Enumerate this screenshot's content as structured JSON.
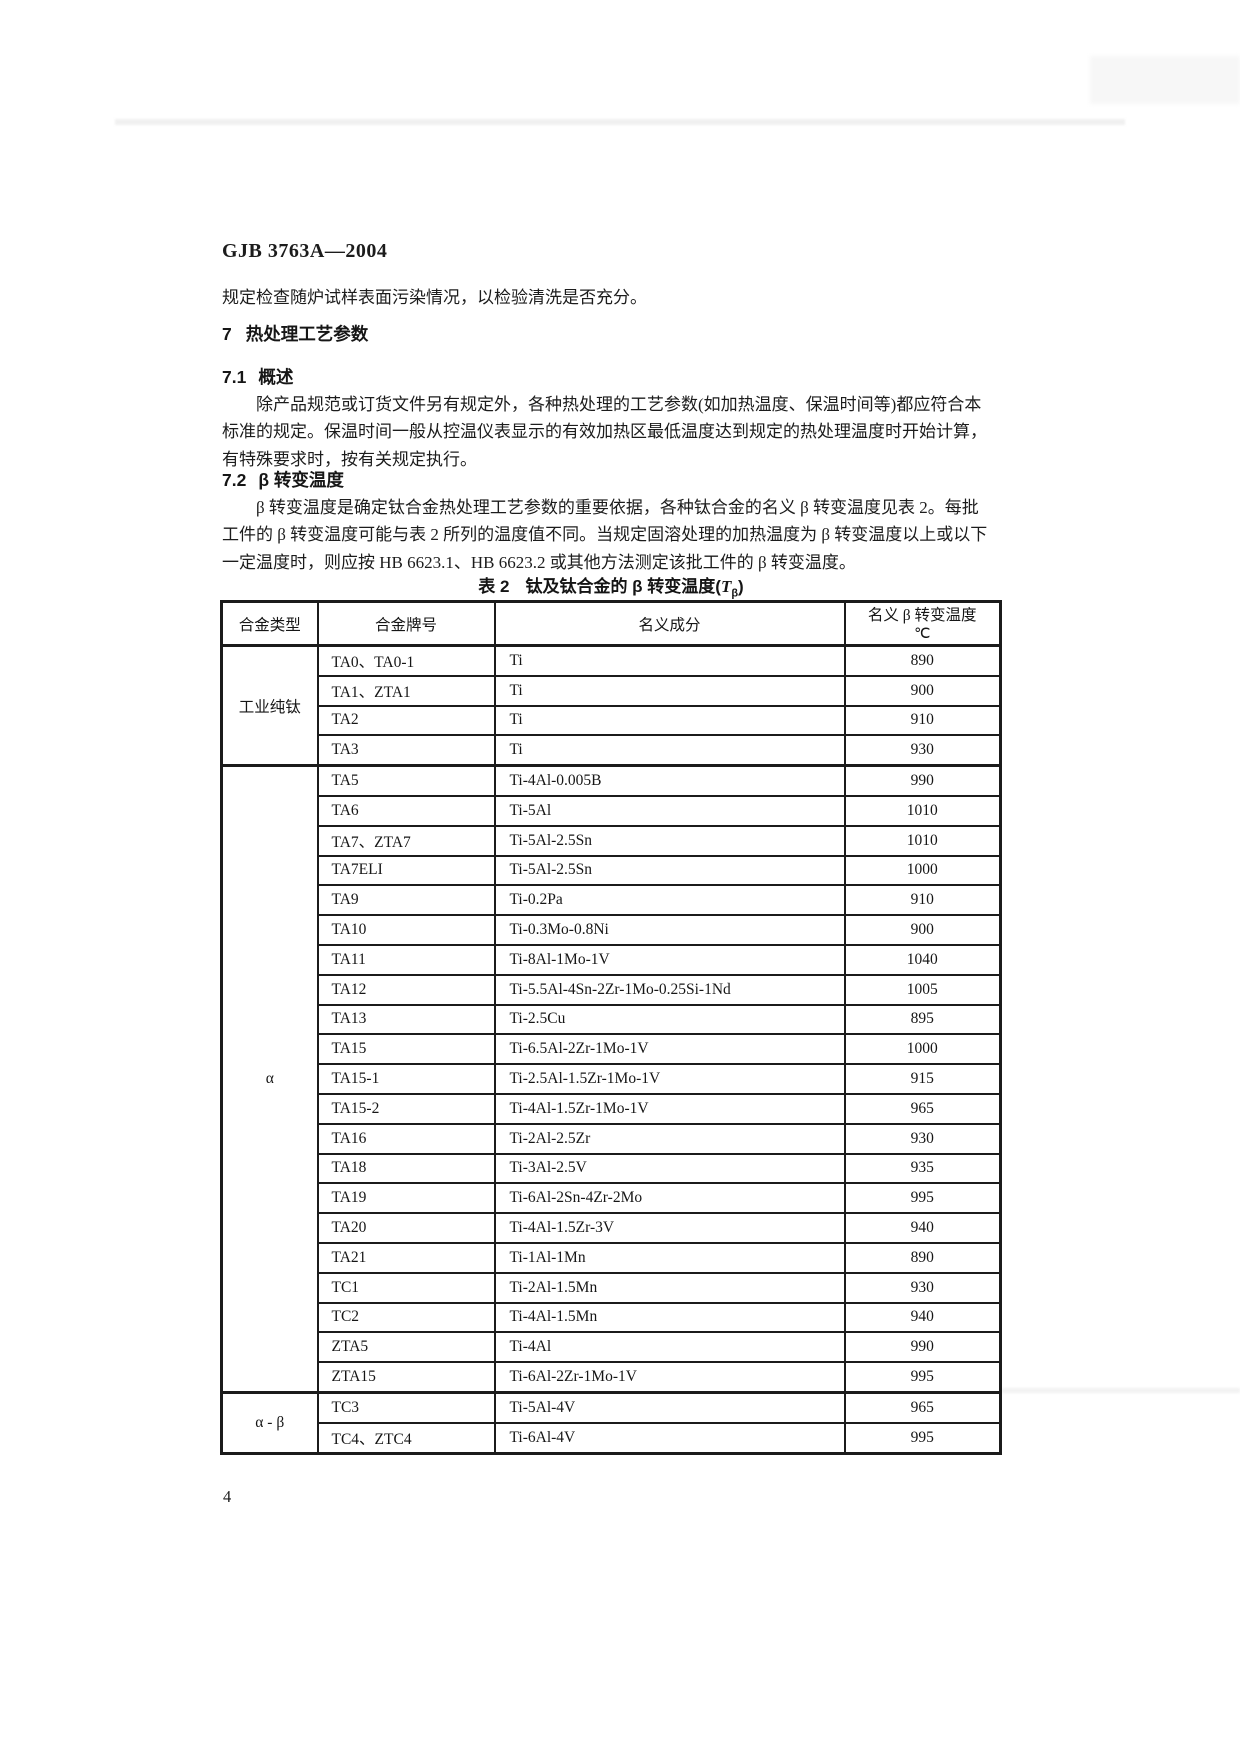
{
  "page": {
    "doc_number": "GJB 3763A—2004",
    "page_number": "4",
    "intro_line": "规定检查随炉试样表面污染情况，以检验清洗是否充分。",
    "section7": {
      "num": "7",
      "title": "热处理工艺参数"
    },
    "section71": {
      "num": "7.1",
      "title": "概述",
      "lines": [
        "除产品规范或订货文件另有规定外，各种热处理的工艺参数(如加热温度、保温时间等)都应符合本",
        "标准的规定。保温时间一般从控温仪表显示的有效加热区最低温度达到规定的热处理温度时开始计算，",
        "有特殊要求时，按有关规定执行。"
      ]
    },
    "section72": {
      "num": "7.2",
      "title": "β 转变温度",
      "lines": [
        "β 转变温度是确定钛合金热处理工艺参数的重要依据，各种钛合金的名义 β 转变温度见表 2。每批",
        "工件的 β 转变温度可能与表 2 所列的温度值不同。当规定固溶处理的加热温度为 β 转变温度以上或以下",
        "一定温度时，则应按 HB 6623.1、HB 6623.2 或其他方法测定该批工件的 β 转变温度。"
      ]
    }
  },
  "table": {
    "caption_label": "表 2",
    "caption_main": "钛及钛合金的 β 转变温度(",
    "caption_symbol": "T",
    "caption_subscript": "β",
    "caption_suffix": ")",
    "headers": {
      "type": "合金类型",
      "grade": "合金牌号",
      "composition": "名义成分",
      "temp_line1": "名义 β 转变温度",
      "temp_line2": "℃"
    },
    "groups": [
      {
        "type": "工业纯钛",
        "rows": [
          {
            "grade": "TA0、TA0-1",
            "composition": "Ti",
            "temp": "890"
          },
          {
            "grade": "TA1、ZTA1",
            "composition": "Ti",
            "temp": "900"
          },
          {
            "grade": "TA2",
            "composition": "Ti",
            "temp": "910"
          },
          {
            "grade": "TA3",
            "composition": "Ti",
            "temp": "930"
          }
        ]
      },
      {
        "type": "α",
        "rows": [
          {
            "grade": "TA5",
            "composition": "Ti-4Al-0.005B",
            "temp": "990"
          },
          {
            "grade": "TA6",
            "composition": "Ti-5Al",
            "temp": "1010"
          },
          {
            "grade": "TA7、ZTA7",
            "composition": "Ti-5Al-2.5Sn",
            "temp": "1010"
          },
          {
            "grade": "TA7ELI",
            "composition": "Ti-5Al-2.5Sn",
            "temp": "1000"
          },
          {
            "grade": "TA9",
            "composition": "Ti-0.2Pa",
            "temp": "910"
          },
          {
            "grade": "TA10",
            "composition": "Ti-0.3Mo-0.8Ni",
            "temp": "900"
          },
          {
            "grade": "TA11",
            "composition": "Ti-8Al-1Mo-1V",
            "temp": "1040"
          },
          {
            "grade": "TA12",
            "composition": "Ti-5.5Al-4Sn-2Zr-1Mo-0.25Si-1Nd",
            "temp": "1005"
          },
          {
            "grade": "TA13",
            "composition": "Ti-2.5Cu",
            "temp": "895"
          },
          {
            "grade": "TA15",
            "composition": "Ti-6.5Al-2Zr-1Mo-1V",
            "temp": "1000"
          },
          {
            "grade": "TA15-1",
            "composition": "Ti-2.5Al-1.5Zr-1Mo-1V",
            "temp": "915"
          },
          {
            "grade": "TA15-2",
            "composition": "Ti-4Al-1.5Zr-1Mo-1V",
            "temp": "965"
          },
          {
            "grade": "TA16",
            "composition": "Ti-2Al-2.5Zr",
            "temp": "930"
          },
          {
            "grade": "TA18",
            "composition": "Ti-3Al-2.5V",
            "temp": "935"
          },
          {
            "grade": "TA19",
            "composition": "Ti-6Al-2Sn-4Zr-2Mo",
            "temp": "995"
          },
          {
            "grade": "TA20",
            "composition": "Ti-4Al-1.5Zr-3V",
            "temp": "940"
          },
          {
            "grade": "TA21",
            "composition": "Ti-1Al-1Mn",
            "temp": "890"
          },
          {
            "grade": "TC1",
            "composition": "Ti-2Al-1.5Mn",
            "temp": "930"
          },
          {
            "grade": "TC2",
            "composition": "Ti-4Al-1.5Mn",
            "temp": "940"
          },
          {
            "grade": "ZTA5",
            "composition": "Ti-4Al",
            "temp": "990"
          },
          {
            "grade": "ZTA15",
            "composition": "Ti-6Al-2Zr-1Mo-1V",
            "temp": "995"
          }
        ]
      },
      {
        "type": "α - β",
        "rows": [
          {
            "grade": "TC3",
            "composition": "Ti-5Al-4V",
            "temp": "965"
          },
          {
            "grade": "TC4、ZTC4",
            "composition": "Ti-6Al-4V",
            "temp": "995"
          }
        ]
      }
    ]
  }
}
